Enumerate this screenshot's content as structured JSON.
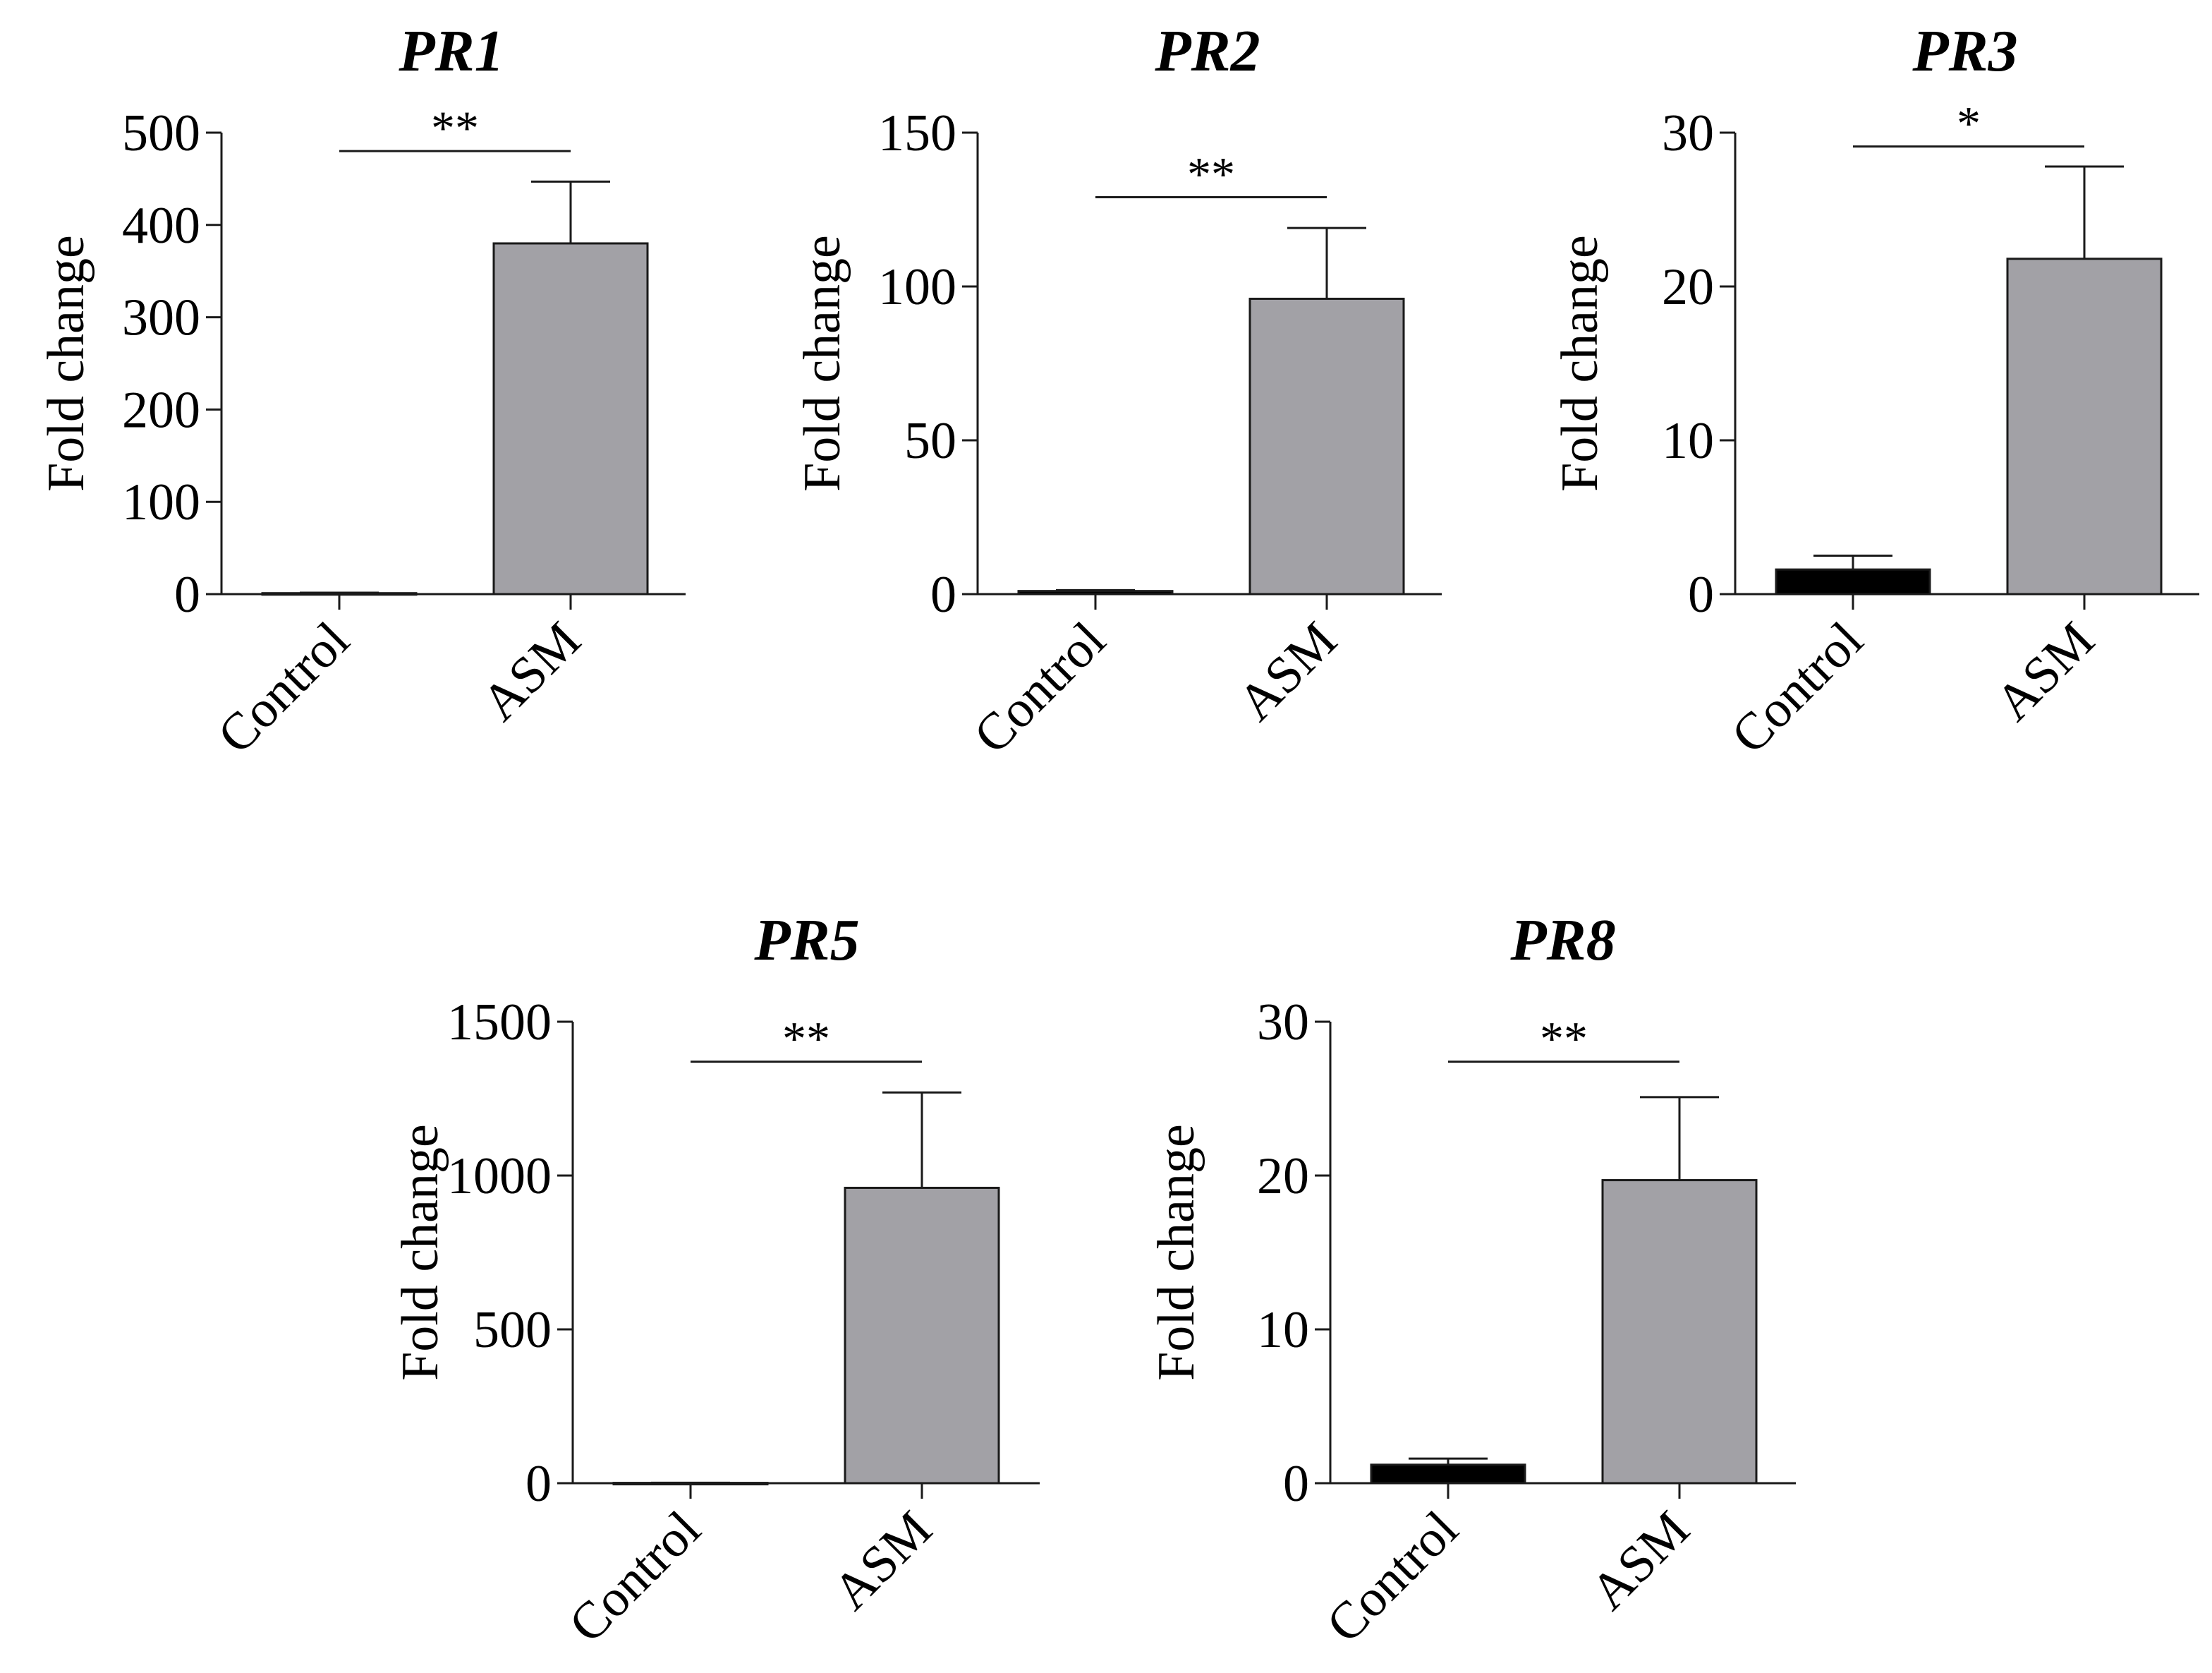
{
  "colors": {
    "control": "#000000",
    "asm": "#a2a1a6",
    "axis": "#1a1a1a"
  },
  "chart_data": [
    {
      "type": "bar",
      "title": "PR1",
      "ylabel": "Fold change",
      "categories": [
        "Control",
        "ASM"
      ],
      "values": [
        1,
        380
      ],
      "errors": [
        0.5,
        67
      ],
      "ylim": [
        0,
        500
      ],
      "yticks": [
        "0",
        "100",
        "200",
        "300",
        "400",
        "500"
      ],
      "yticks_values": [
        0,
        100,
        200,
        300,
        400,
        500
      ],
      "significance": "**",
      "sig_level": 480
    },
    {
      "type": "bar",
      "title": "PR2",
      "ylabel": "Fold change",
      "categories": [
        "Control",
        "ASM"
      ],
      "values": [
        1,
        96
      ],
      "errors": [
        0.3,
        23
      ],
      "ylim": [
        0,
        150
      ],
      "yticks": [
        "0",
        "50",
        "100",
        "150"
      ],
      "yticks_values": [
        0,
        50,
        100,
        150
      ],
      "significance": "**",
      "sig_level": 129
    },
    {
      "type": "bar",
      "title": "PR3",
      "ylabel": "Fold change",
      "categories": [
        "Control",
        "ASM"
      ],
      "values": [
        1.6,
        21.8
      ],
      "errors": [
        0.9,
        6.0
      ],
      "ylim": [
        0,
        30
      ],
      "yticks": [
        "0",
        "10",
        "20",
        "30"
      ],
      "yticks_values": [
        0,
        10,
        20,
        30
      ],
      "significance": "*",
      "sig_level": 29.1
    },
    {
      "type": "bar",
      "title": "PR5",
      "ylabel": "Fold change",
      "categories": [
        "Control",
        "ASM"
      ],
      "values": [
        1,
        960
      ],
      "errors": [
        0.5,
        310
      ],
      "ylim": [
        0,
        1500
      ],
      "yticks": [
        "0",
        "500",
        "1000",
        "1500"
      ],
      "yticks_values": [
        0,
        500,
        1000,
        1500
      ],
      "significance": "**",
      "sig_level": 1370
    },
    {
      "type": "bar",
      "title": "PR8",
      "ylabel": "Fold change",
      "categories": [
        "Control",
        "ASM"
      ],
      "values": [
        1.2,
        19.7
      ],
      "errors": [
        0.4,
        5.4
      ],
      "ylim": [
        0,
        30
      ],
      "yticks": [
        "0",
        "10",
        "20",
        "30"
      ],
      "yticks_values": [
        0,
        10,
        20,
        30
      ],
      "significance": "**",
      "sig_level": 27.4
    }
  ]
}
